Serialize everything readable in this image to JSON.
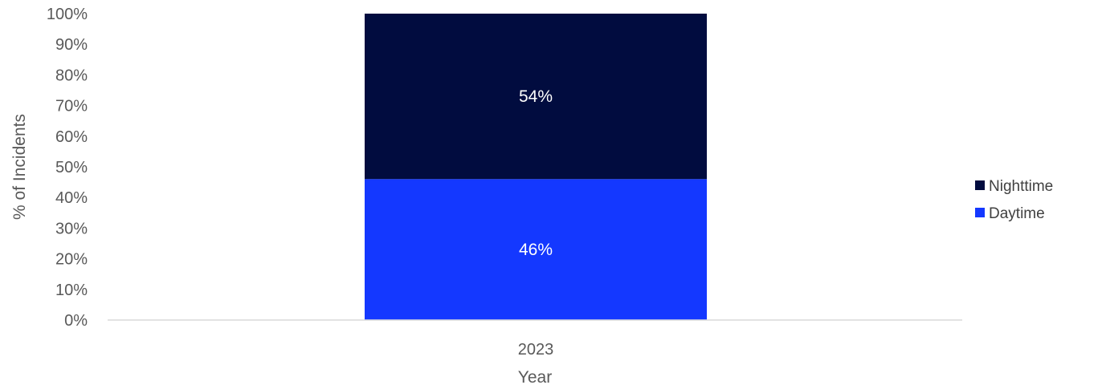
{
  "chart_data": {
    "type": "bar",
    "stacked": true,
    "categories": [
      "2023"
    ],
    "series": [
      {
        "name": "Daytime",
        "values": [
          46
        ],
        "color": "#1438FF",
        "label": "46%"
      },
      {
        "name": "Nighttime",
        "values": [
          54
        ],
        "color": "#010C3F",
        "label": "54%"
      }
    ],
    "xlabel": "Year",
    "ylabel": "% of Incidents",
    "ylim": [
      0,
      100
    ],
    "yticks": [
      "0%",
      "10%",
      "20%",
      "30%",
      "40%",
      "50%",
      "60%",
      "70%",
      "80%",
      "90%",
      "100%"
    ],
    "grid": false,
    "legend": {
      "position": "right",
      "entries": [
        "Nighttime",
        "Daytime"
      ]
    }
  }
}
